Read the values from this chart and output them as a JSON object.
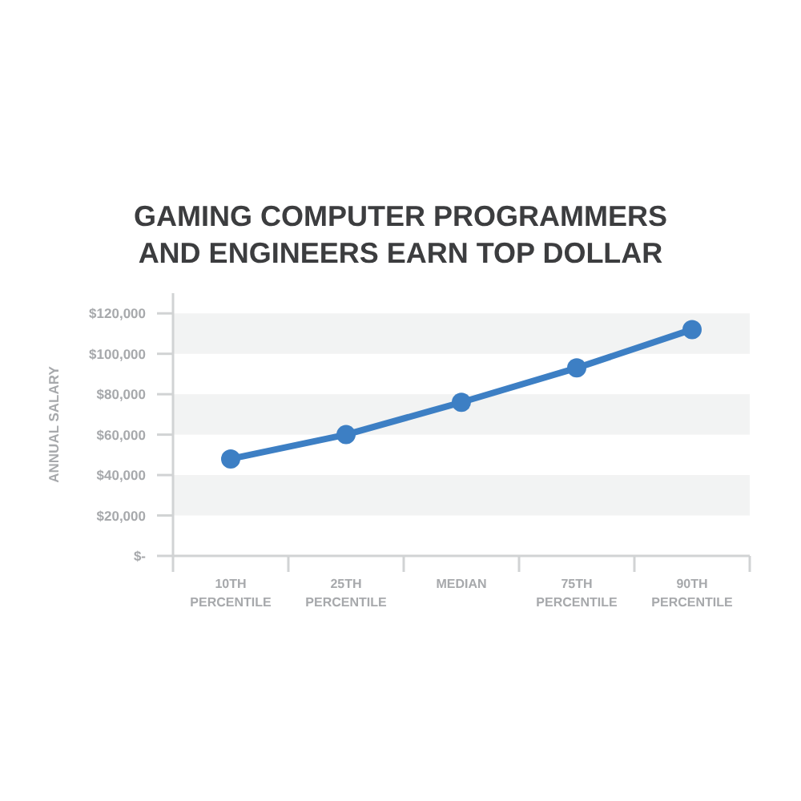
{
  "chart_data": {
    "type": "line",
    "title": "GAMING COMPUTER PROGRAMMERS AND ENGINEERS EARN TOP DOLLAR",
    "ylabel": "ANNUAL SALARY",
    "categories": [
      "10TH PERCENTILE",
      "25TH PERCENTILE",
      "MEDIAN",
      "75TH PERCENTILE",
      "90TH PERCENTILE"
    ],
    "series": [
      {
        "color": "#3d7fc4",
        "values": [
          48000,
          60000,
          76000,
          93000,
          112000
        ]
      }
    ],
    "ylim": [
      0,
      130000
    ],
    "yticks": [
      {
        "value": 0,
        "label": "$-"
      },
      {
        "value": 20000,
        "label": "$20,000"
      },
      {
        "value": 40000,
        "label": "$40,000"
      },
      {
        "value": 60000,
        "label": "$60,000"
      },
      {
        "value": 80000,
        "label": "$80,000"
      },
      {
        "value": 100000,
        "label": "$100,000"
      },
      {
        "value": 120000,
        "label": "$120,000"
      }
    ],
    "bands": [
      {
        "axis": "y",
        "from": 20000,
        "to": 40000,
        "color": "#f2f3f3"
      },
      {
        "axis": "y",
        "from": 60000,
        "to": 80000,
        "color": "#f2f3f3"
      },
      {
        "axis": "y",
        "from": 100000,
        "to": 120000,
        "color": "#f2f3f3"
      }
    ],
    "marker": "circle",
    "line_style": "solid"
  }
}
